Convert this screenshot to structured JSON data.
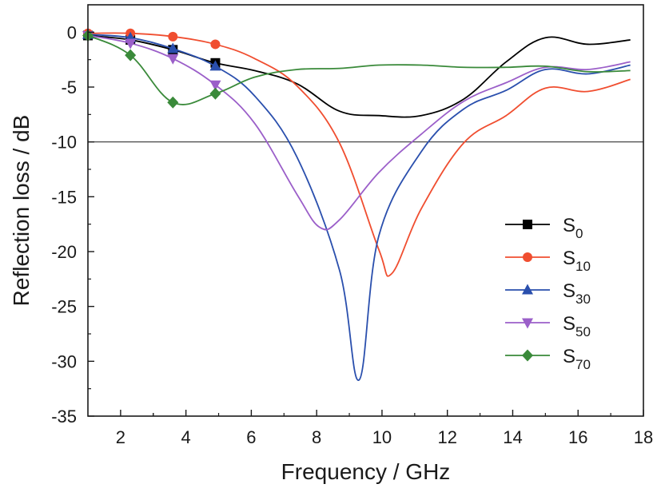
{
  "chart_data": {
    "type": "line",
    "title": "",
    "xlabel": "Frequency / GHz",
    "ylabel": "Reflection loss / dB",
    "xlim": [
      1,
      18
    ],
    "ylim": [
      -35,
      2.5
    ],
    "x_ticks": [
      2,
      4,
      6,
      8,
      10,
      12,
      14,
      16,
      18
    ],
    "y_ticks": [
      0,
      -5,
      -10,
      -15,
      -20,
      -25,
      -30,
      -35
    ],
    "reference_line": {
      "y": -10
    },
    "grid": false,
    "legend_position": "right",
    "series": [
      {
        "name": "S0",
        "name_base": "S",
        "name_sub": "0",
        "color": "#000000",
        "marker": "square",
        "x": [
          1.0,
          2.3,
          3.6,
          4.9,
          6.1,
          7.4,
          8.7,
          9.9,
          11.2,
          12.5,
          13.8,
          15.0,
          16.3,
          17.6
        ],
        "y": [
          -0.3,
          -0.7,
          -1.6,
          -2.8,
          -3.5,
          -4.7,
          -7.2,
          -7.6,
          -7.6,
          -6.1,
          -2.7,
          -0.5,
          -1.1,
          -0.7
        ]
      },
      {
        "name": "S10",
        "name_base": "S",
        "name_sub": "10",
        "color": "#f04e30",
        "marker": "circle",
        "x": [
          1.0,
          2.3,
          3.6,
          4.9,
          6.1,
          7.4,
          8.7,
          9.9,
          10.3,
          11.2,
          12.5,
          13.8,
          15.0,
          16.3,
          17.6
        ],
        "y": [
          -0.1,
          -0.1,
          -0.4,
          -1.1,
          -2.4,
          -4.9,
          -10.1,
          -19.8,
          -22.0,
          -16.1,
          -10.1,
          -7.6,
          -5.1,
          -5.4,
          -4.3
        ]
      },
      {
        "name": "S30",
        "name_base": "S",
        "name_sub": "30",
        "color": "#2a4fad",
        "marker": "triangle-up",
        "x": [
          1.0,
          2.3,
          3.6,
          4.9,
          6.1,
          7.4,
          8.7,
          9.3,
          9.9,
          11.2,
          12.5,
          13.8,
          15.0,
          16.3,
          17.6
        ],
        "y": [
          -0.2,
          -0.5,
          -1.5,
          -3.1,
          -5.8,
          -11.4,
          -21.7,
          -31.7,
          -18.6,
          -10.9,
          -7.0,
          -5.3,
          -3.4,
          -3.8,
          -3.0
        ]
      },
      {
        "name": "S50",
        "name_base": "S",
        "name_sub": "50",
        "color": "#9b5fc9",
        "marker": "triangle-down",
        "x": [
          1.0,
          2.3,
          3.6,
          4.9,
          6.1,
          7.4,
          8.1,
          8.7,
          9.9,
          11.2,
          12.5,
          13.8,
          15.0,
          16.3,
          17.6
        ],
        "y": [
          -0.3,
          -1.0,
          -2.4,
          -4.8,
          -8.3,
          -14.8,
          -17.8,
          -17.1,
          -12.8,
          -9.3,
          -6.3,
          -4.6,
          -3.2,
          -3.4,
          -2.7
        ]
      },
      {
        "name": "S70",
        "name_base": "S",
        "name_sub": "70",
        "color": "#3a8a3a",
        "marker": "diamond",
        "x": [
          1.0,
          2.3,
          3.6,
          4.9,
          6.1,
          7.4,
          8.7,
          9.9,
          11.2,
          12.5,
          13.8,
          15.0,
          16.3,
          17.6
        ],
        "y": [
          -0.3,
          -2.1,
          -6.4,
          -5.6,
          -4.1,
          -3.4,
          -3.3,
          -3.0,
          -3.0,
          -3.2,
          -3.2,
          -3.1,
          -3.6,
          -3.5
        ]
      }
    ]
  }
}
